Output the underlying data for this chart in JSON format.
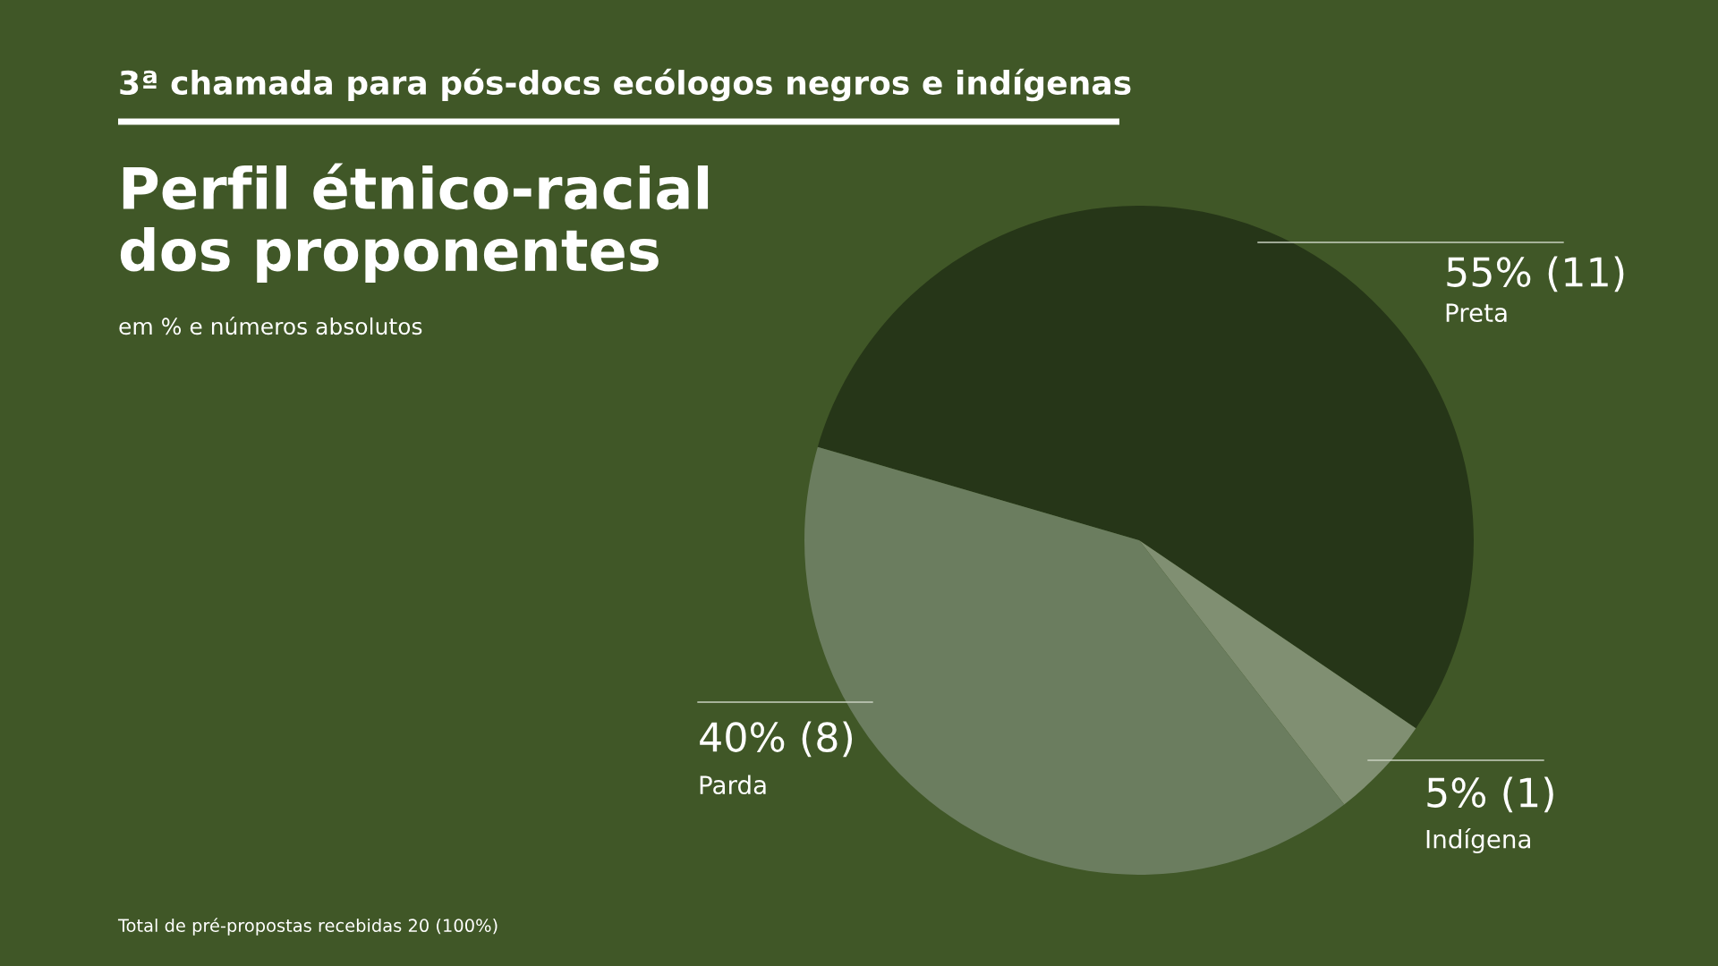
{
  "chart_data": {
    "type": "pie",
    "title": "3ª chamada para pós-docs ecólogos negros e indígenas",
    "subtitle": "Perfil étnico-racial\ndos proponentes",
    "categories": [
      "Preta",
      "Indígena",
      "Parda"
    ],
    "values": [
      55,
      5,
      40
    ],
    "colors": [
      "#263618",
      "#808f72",
      "#6b7d5f"
    ],
    "value_labels": [
      "55% (11)",
      "5% (1)",
      "40% (8)"
    ],
    "annotations": [
      "em % e números absolutos",
      "Total de pré-propostas recebidas 20 (100%)"
    ],
    "legend": false
  }
}
